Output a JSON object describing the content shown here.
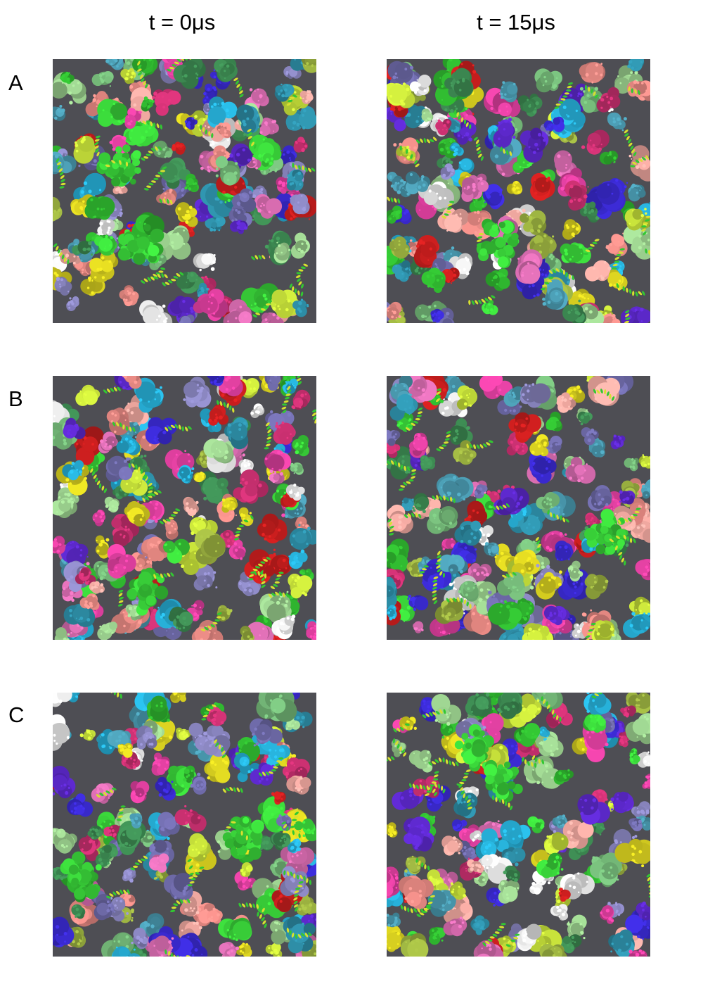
{
  "column_headers": [
    "t = 0μs",
    "t = 15μs"
  ],
  "row_labels": [
    "A",
    "B",
    "C"
  ],
  "panel_palette": [
    "#e88a84",
    "#f0a8a0",
    "#8a86c0",
    "#6e6aa8",
    "#9bd08e",
    "#74b878",
    "#2fb52f",
    "#3ad43a",
    "#d8d020",
    "#c6e03a",
    "#4a9ab0",
    "#2e8fa8",
    "#c83070",
    "#e040a0",
    "#c81e1e",
    "#3a2ad0",
    "#5b28c8",
    "#27b0d8",
    "#d86cb0",
    "#e8e8e8",
    "#3d8a52",
    "#9ab040"
  ],
  "panels": [
    {
      "name": "panel-A-t0",
      "row": 0,
      "col": 0,
      "seed": 11
    },
    {
      "name": "panel-A-t15",
      "row": 0,
      "col": 1,
      "seed": 23
    },
    {
      "name": "panel-B-t0",
      "row": 1,
      "col": 0,
      "seed": 37
    },
    {
      "name": "panel-B-t15",
      "row": 1,
      "col": 1,
      "seed": 41
    },
    {
      "name": "panel-C-t0",
      "row": 2,
      "col": 0,
      "seed": 53
    },
    {
      "name": "panel-C-t15",
      "row": 2,
      "col": 1,
      "seed": 67
    }
  ]
}
